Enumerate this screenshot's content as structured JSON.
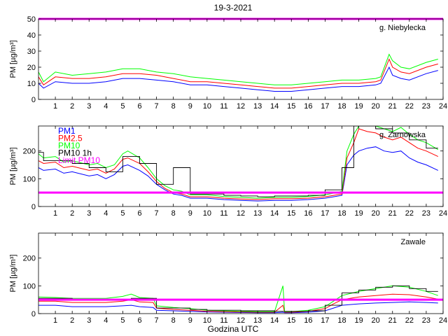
{
  "figure": {
    "title": "19-3-2021",
    "xlabel": "Godzina UTC"
  },
  "colors": {
    "pm1": "#0000ff",
    "pm25": "#ff0000",
    "pm10": "#00ff00",
    "pm10_1h": "#000000",
    "limit": "#ff00ff"
  },
  "chart_data": [
    {
      "type": "line",
      "station": "g. Niebylecka",
      "ylabel": "PM [µg/m³]",
      "xlim": [
        0,
        24
      ],
      "ylim": [
        0,
        50
      ],
      "yticks": [
        0,
        10,
        20,
        30,
        40,
        50
      ],
      "xticks": [
        1,
        2,
        3,
        4,
        5,
        6,
        7,
        8,
        9,
        10,
        11,
        12,
        13,
        14,
        15,
        16,
        17,
        18,
        19,
        20,
        21,
        22,
        23,
        24
      ],
      "limit_pm10": 50,
      "legend": false,
      "x": [
        0,
        0.3,
        1,
        2,
        3,
        4,
        5,
        6,
        7,
        8,
        9,
        10,
        11,
        12,
        13,
        14,
        15,
        16,
        17,
        18,
        19,
        20,
        20.3,
        20.8,
        21,
        21.5,
        22,
        23,
        23.7
      ],
      "series": [
        {
          "name": "PM1",
          "values": [
            10,
            7,
            11,
            10,
            10,
            11,
            13,
            13,
            12,
            11,
            9,
            9,
            8,
            7,
            6,
            5,
            5,
            6,
            7,
            8,
            8,
            9,
            10,
            20,
            15,
            13,
            12,
            16,
            18
          ]
        },
        {
          "name": "PM2.5",
          "values": [
            14,
            9,
            14,
            13,
            13,
            14,
            16,
            16,
            15,
            13,
            11,
            11,
            10,
            9,
            8,
            7,
            7,
            8,
            9,
            10,
            10,
            11,
            12,
            25,
            20,
            17,
            16,
            20,
            22
          ]
        },
        {
          "name": "PM10",
          "values": [
            17,
            11,
            17,
            15,
            16,
            17,
            19,
            19,
            17,
            16,
            14,
            13,
            12,
            11,
            10,
            9,
            9,
            10,
            11,
            12,
            12,
            13,
            14,
            28,
            24,
            20,
            19,
            23,
            25
          ]
        }
      ]
    },
    {
      "type": "line",
      "station": "g. Zarnowska",
      "ylabel": "PM [µg/m³]",
      "xlim": [
        0,
        24
      ],
      "ylim": [
        0,
        290
      ],
      "yticks": [
        0,
        100,
        200
      ],
      "xticks": [
        1,
        2,
        3,
        4,
        5,
        6,
        7,
        8,
        9,
        10,
        11,
        12,
        13,
        14,
        15,
        16,
        17,
        18,
        19,
        20,
        21,
        22,
        23,
        24
      ],
      "limit_pm10": 50,
      "legend": true,
      "legend_entries": [
        "PM1",
        "PM2.5",
        "PM10",
        "PM10 1h",
        "Limit PM10"
      ],
      "x": [
        0,
        0.3,
        1,
        1.5,
        2,
        3,
        3.5,
        4,
        4.5,
        5,
        5.3,
        6,
        6.5,
        7,
        7.5,
        8,
        8.5,
        9,
        10,
        11,
        12,
        13,
        14,
        15,
        16,
        17,
        17.5,
        18,
        18.3,
        18.7,
        19,
        19.5,
        20,
        20.5,
        21,
        21.5,
        22,
        22.5,
        23,
        23.7
      ],
      "series": [
        {
          "name": "PM1",
          "values": [
            140,
            130,
            135,
            120,
            125,
            110,
            115,
            100,
            115,
            145,
            150,
            130,
            110,
            80,
            60,
            45,
            40,
            30,
            30,
            25,
            22,
            20,
            22,
            22,
            25,
            30,
            35,
            40,
            150,
            185,
            200,
            210,
            215,
            200,
            195,
            200,
            175,
            160,
            150,
            130
          ]
        },
        {
          "name": "PM2.5",
          "values": [
            165,
            155,
            160,
            140,
            145,
            130,
            135,
            120,
            135,
            170,
            175,
            155,
            125,
            90,
            65,
            50,
            45,
            35,
            35,
            30,
            27,
            25,
            28,
            28,
            30,
            35,
            40,
            45,
            175,
            230,
            280,
            270,
            265,
            250,
            240,
            250,
            230,
            210,
            200,
            180
          ]
        },
        {
          "name": "PM10",
          "values": [
            190,
            175,
            180,
            160,
            165,
            150,
            155,
            140,
            150,
            190,
            200,
            175,
            140,
            100,
            75,
            60,
            55,
            42,
            42,
            36,
            33,
            30,
            33,
            33,
            36,
            42,
            48,
            55,
            200,
            260,
            290,
            290,
            290,
            280,
            270,
            285,
            260,
            240,
            230,
            205
          ]
        },
        {
          "name": "PM10 1h",
          "step": true,
          "values": [
            195,
            165,
            165,
            165,
            155,
            140,
            140,
            125,
            125,
            180,
            180,
            155,
            155,
            80,
            80,
            140,
            140,
            45,
            45,
            40,
            38,
            35,
            38,
            38,
            40,
            60,
            60,
            140,
            140,
            290,
            290,
            290,
            280,
            280,
            265,
            265,
            240,
            240,
            210,
            210
          ]
        }
      ]
    },
    {
      "type": "line",
      "station": "Zawale",
      "ylabel": "PM [µg/m³]",
      "xlim": [
        0,
        24
      ],
      "ylim": [
        0,
        290
      ],
      "yticks": [
        0,
        100,
        200
      ],
      "xticks": [
        1,
        2,
        3,
        4,
        5,
        6,
        7,
        8,
        9,
        10,
        11,
        12,
        13,
        14,
        15,
        16,
        17,
        18,
        19,
        20,
        21,
        22,
        23,
        24
      ],
      "limit_pm10": 50,
      "legend": false,
      "x": [
        0,
        1,
        2,
        3,
        4,
        5,
        5.5,
        6,
        6.8,
        7,
        8,
        9,
        10,
        11,
        12,
        13,
        14,
        14.5,
        14.6,
        15,
        16,
        17,
        17.5,
        18,
        19,
        20,
        21,
        22,
        23,
        23.7
      ],
      "series": [
        {
          "name": "PM1",
          "values": [
            30,
            30,
            25,
            25,
            25,
            28,
            30,
            25,
            22,
            12,
            10,
            8,
            6,
            5,
            4,
            3,
            3,
            5,
            3,
            3,
            5,
            10,
            20,
            30,
            35,
            38,
            40,
            42,
            40,
            38
          ]
        },
        {
          "name": "PM2.5",
          "values": [
            45,
            45,
            40,
            40,
            40,
            45,
            50,
            42,
            40,
            20,
            15,
            12,
            8,
            7,
            6,
            5,
            5,
            30,
            5,
            5,
            8,
            18,
            35,
            50,
            60,
            65,
            70,
            68,
            60,
            52
          ]
        },
        {
          "name": "PM10",
          "values": [
            60,
            58,
            55,
            55,
            55,
            62,
            70,
            58,
            55,
            28,
            22,
            18,
            12,
            10,
            8,
            7,
            7,
            100,
            7,
            7,
            12,
            25,
            45,
            65,
            80,
            90,
            100,
            95,
            80,
            65
          ]
        },
        {
          "name": "PM10 1h",
          "step": true,
          "values": [
            55,
            55,
            50,
            50,
            50,
            50,
            55,
            55,
            55,
            20,
            20,
            15,
            12,
            12,
            10,
            10,
            8,
            8,
            8,
            8,
            10,
            30,
            30,
            75,
            85,
            95,
            100,
            90,
            80,
            80
          ]
        }
      ]
    }
  ]
}
